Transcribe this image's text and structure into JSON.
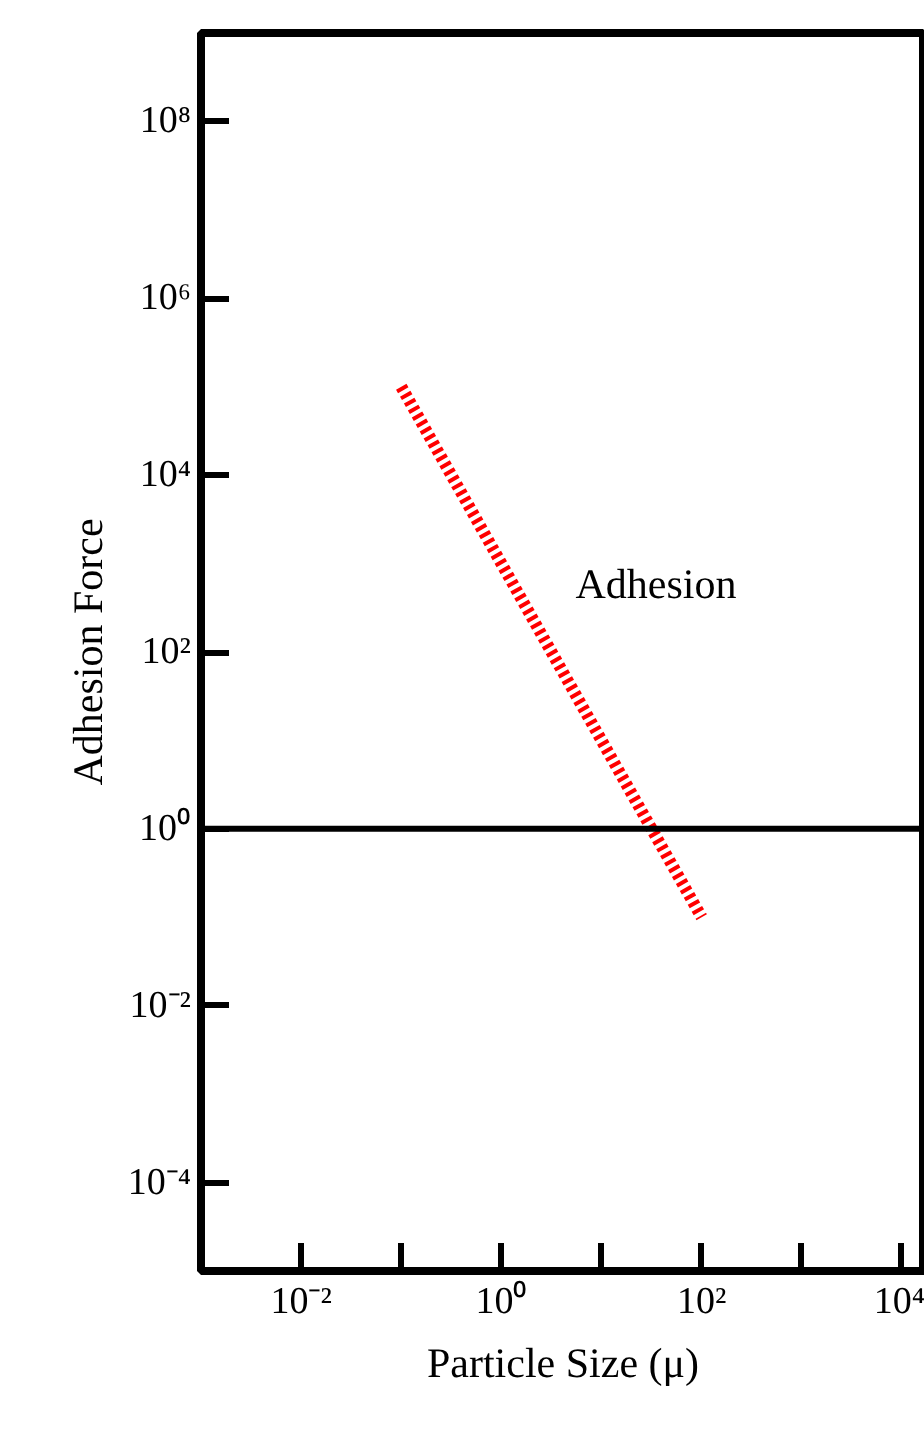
{
  "chart_data": {
    "type": "line",
    "xlabel": "Particle Size (μ)",
    "ylabel": "Adhesion Force",
    "log": "xy",
    "xlim": [
      0.001,
      17000
    ],
    "ylim": [
      1e-05,
      1000000000
    ],
    "xticks": [
      {
        "value": 0.01,
        "label": "10⁻²"
      },
      {
        "value": 0.1,
        "label": null
      },
      {
        "value": 1,
        "label": "10⁰"
      },
      {
        "value": 10,
        "label": null
      },
      {
        "value": 100,
        "label": "10²"
      },
      {
        "value": 1000,
        "label": null
      },
      {
        "value": 10000,
        "label": "10⁴"
      }
    ],
    "yticks": [
      {
        "value": 0.0001,
        "label": "10⁻⁴"
      },
      {
        "value": 0.01,
        "label": "10⁻²"
      },
      {
        "value": 1,
        "label": "10⁰"
      },
      {
        "value": 100,
        "label": "10²"
      },
      {
        "value": 10000,
        "label": "10⁴"
      },
      {
        "value": 1000000,
        "label": "10⁶"
      },
      {
        "value": 100000000,
        "label": "10⁸"
      }
    ],
    "x": [
      0.1,
      100
    ],
    "series": [
      {
        "name": "Adhesion",
        "color": "#ff0000",
        "values": [
          100000,
          0.1
        ]
      }
    ],
    "line_style": "dotted",
    "marker": "none",
    "grid": false,
    "legend": false,
    "ref_lines": [
      {
        "axis": "y",
        "value": 1,
        "color": "#000000",
        "line_style": "solid"
      }
    ]
  }
}
